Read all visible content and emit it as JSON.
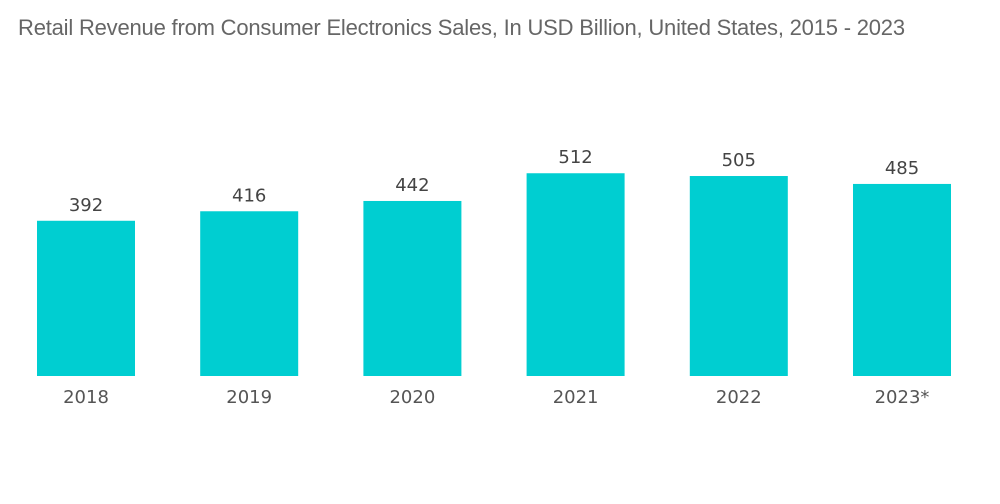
{
  "chart_data": {
    "type": "bar",
    "title": "Retail Revenue from Consumer Electronics Sales, In USD Billion, United States, 2015 - 2023",
    "categories": [
      "2018",
      "2019",
      "2020",
      "2021",
      "2022",
      "2023*"
    ],
    "values": [
      392,
      416,
      442,
      512,
      505,
      485
    ],
    "xlabel": "",
    "ylabel": "",
    "ylim": [
      0,
      600
    ],
    "grid": false,
    "bar_color": "#00CED1",
    "data_labels": true
  }
}
